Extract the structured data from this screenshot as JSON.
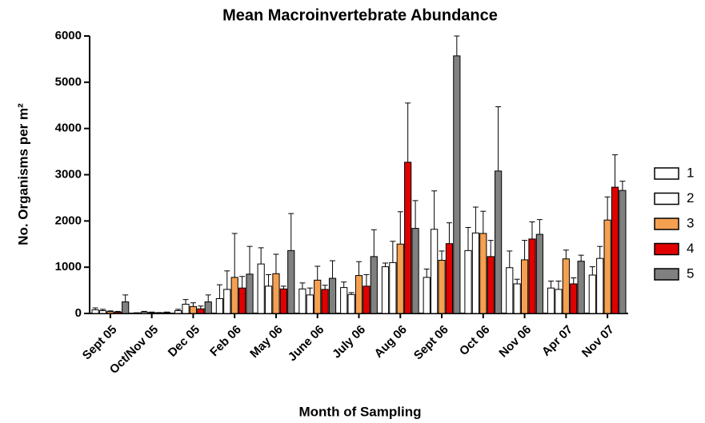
{
  "chart_data": {
    "type": "bar",
    "title": "Mean Macroinvertebrate Abundance",
    "x_label": "Month of Sampling",
    "y_label": "No. Organisms per m²",
    "categories": [
      "Sept 05",
      "Oct/Nov 05",
      "Dec 05",
      "Feb 06",
      "May 06",
      "June 06",
      "July 06",
      "Aug 06",
      "Sept 06",
      "Oct 06",
      "Nov 06",
      "Apr 07",
      "Nov 07"
    ],
    "series": [
      {
        "name": "1",
        "color": "#ffffff",
        "values": [
          80,
          10,
          60,
          320,
          1070,
          530,
          560,
          1010,
          780,
          1360,
          990,
          550,
          830
        ],
        "errors": [
          40,
          5,
          30,
          300,
          350,
          130,
          120,
          80,
          180,
          500,
          360,
          150,
          180
        ]
      },
      {
        "name": "2",
        "color": "#ffffff",
        "values": [
          60,
          30,
          200,
          520,
          590,
          400,
          410,
          1100,
          1820,
          1740,
          640,
          520,
          1190
        ],
        "errors": [
          30,
          15,
          100,
          400,
          250,
          150,
          40,
          460,
          830,
          560,
          100,
          180,
          260
        ]
      },
      {
        "name": "3",
        "color": "#f5a050",
        "values": [
          40,
          20,
          150,
          780,
          860,
          720,
          820,
          1500,
          1150,
          1730,
          1160,
          1180,
          2020
        ],
        "errors": [
          15,
          10,
          80,
          950,
          420,
          300,
          300,
          700,
          200,
          480,
          420,
          190,
          500
        ]
      },
      {
        "name": "4",
        "color": "#e00000",
        "values": [
          30,
          15,
          100,
          550,
          530,
          520,
          590,
          3270,
          1510,
          1230,
          1610,
          640,
          2730
        ],
        "errors": [
          15,
          5,
          60,
          250,
          60,
          90,
          250,
          1280,
          450,
          350,
          370,
          130,
          700
        ]
      },
      {
        "name": "5",
        "color": "#808080",
        "values": [
          250,
          20,
          250,
          850,
          1360,
          760,
          1230,
          1840,
          5570,
          3080,
          1710,
          1130,
          2660
        ],
        "errors": [
          150,
          10,
          150,
          600,
          800,
          380,
          580,
          600,
          430,
          1390,
          320,
          130,
          200
        ]
      }
    ],
    "ylim": [
      0,
      6000
    ],
    "yticks": [
      0,
      1000,
      2000,
      3000,
      4000,
      5000,
      6000
    ],
    "legend": "right"
  }
}
